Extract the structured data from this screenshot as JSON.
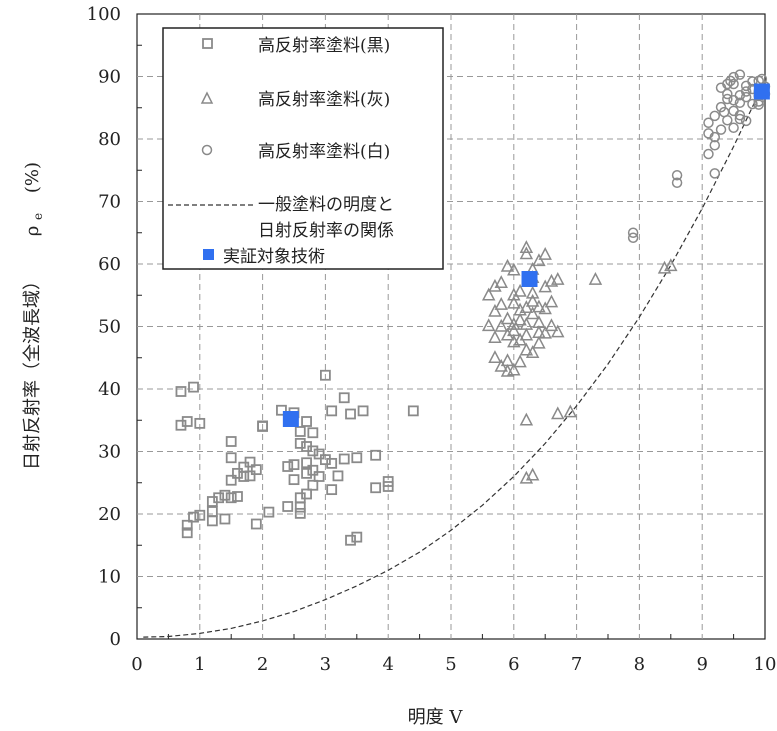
{
  "chart_data": {
    "type": "scatter",
    "xlabel": "明度 V",
    "ylabel": "日射反射率（全波長域）　ρe（%）",
    "ylabel_main": "日射反射率（全波長域）",
    "ylabel_symbol": "ρ",
    "ylabel_subscript": "e",
    "ylabel_unit": "(%)",
    "xlim": [
      0,
      10
    ],
    "ylim": [
      0,
      100
    ],
    "x_ticks": [
      0,
      1,
      2,
      3,
      4,
      5,
      6,
      7,
      8,
      9,
      10
    ],
    "y_ticks": [
      0,
      10,
      20,
      30,
      40,
      50,
      60,
      70,
      80,
      90,
      100
    ],
    "grid": true,
    "legend_position": "top-left",
    "colors": {
      "gray": "#8a8a8a",
      "blue": "#3070f0",
      "curve": "#333333"
    },
    "series": [
      {
        "name": "高反射率塗料(黒)",
        "marker": "square-open",
        "points": [
          [
            0.7,
            34.2
          ],
          [
            0.7,
            39.6
          ],
          [
            0.8,
            17.0
          ],
          [
            0.8,
            18.2
          ],
          [
            0.8,
            34.8
          ],
          [
            0.9,
            40.3
          ],
          [
            0.9,
            19.5
          ],
          [
            1.0,
            34.5
          ],
          [
            1.0,
            19.8
          ],
          [
            1.2,
            18.9
          ],
          [
            1.2,
            20.4
          ],
          [
            1.2,
            22.0
          ],
          [
            1.3,
            22.6
          ],
          [
            1.4,
            23.0
          ],
          [
            1.4,
            19.2
          ],
          [
            1.5,
            25.4
          ],
          [
            1.5,
            29.0
          ],
          [
            1.5,
            31.6
          ],
          [
            1.6,
            22.8
          ],
          [
            1.6,
            26.5
          ],
          [
            1.7,
            26.0
          ],
          [
            1.7,
            27.5
          ],
          [
            1.8,
            28.3
          ],
          [
            1.8,
            26.1
          ],
          [
            1.9,
            27.1
          ],
          [
            1.9,
            18.4
          ],
          [
            2.0,
            34.1
          ],
          [
            2.1,
            20.3
          ],
          [
            2.3,
            36.6
          ],
          [
            2.4,
            21.2
          ],
          [
            2.4,
            27.6
          ],
          [
            2.5,
            27.9
          ],
          [
            2.5,
            25.5
          ],
          [
            2.5,
            36.2
          ],
          [
            2.6,
            20.1
          ],
          [
            2.6,
            22.6
          ],
          [
            2.6,
            31.3
          ],
          [
            2.6,
            33.2
          ],
          [
            2.7,
            26.5
          ],
          [
            2.7,
            23.2
          ],
          [
            2.7,
            28.2
          ],
          [
            2.7,
            30.8
          ],
          [
            2.7,
            34.8
          ],
          [
            2.8,
            24.6
          ],
          [
            2.8,
            27.0
          ],
          [
            2.8,
            30.1
          ],
          [
            2.8,
            33.0
          ],
          [
            2.9,
            26.0
          ],
          [
            2.9,
            29.6
          ],
          [
            3.0,
            28.7
          ],
          [
            3.0,
            42.2
          ],
          [
            3.1,
            36.5
          ],
          [
            3.1,
            28.1
          ],
          [
            3.2,
            26.1
          ],
          [
            3.3,
            38.6
          ],
          [
            3.3,
            28.8
          ],
          [
            3.4,
            36.0
          ],
          [
            3.4,
            15.8
          ],
          [
            3.5,
            16.3
          ],
          [
            3.5,
            29.0
          ],
          [
            3.6,
            36.5
          ],
          [
            3.8,
            24.2
          ],
          [
            3.8,
            29.4
          ],
          [
            4.0,
            24.4
          ],
          [
            4.0,
            25.2
          ],
          [
            4.4,
            36.5
          ],
          [
            1.5,
            22.6
          ],
          [
            2.0,
            34.0
          ],
          [
            3.1,
            23.9
          ],
          [
            2.6,
            21.1
          ]
        ]
      },
      {
        "name": "高反射率塗料(灰)",
        "marker": "triangle-open",
        "points": [
          [
            5.6,
            50.1
          ],
          [
            5.6,
            55.0
          ],
          [
            5.7,
            56.4
          ],
          [
            5.7,
            48.2
          ],
          [
            5.7,
            52.4
          ],
          [
            5.7,
            45.0
          ],
          [
            5.8,
            43.6
          ],
          [
            5.8,
            57.0
          ],
          [
            5.8,
            53.5
          ],
          [
            5.9,
            48.6
          ],
          [
            5.9,
            51.2
          ],
          [
            5.9,
            44.5
          ],
          [
            5.9,
            42.8
          ],
          [
            6.0,
            59.0
          ],
          [
            6.0,
            49.3
          ],
          [
            6.0,
            53.7
          ],
          [
            6.0,
            43.0
          ],
          [
            6.1,
            52.6
          ],
          [
            6.1,
            55.6
          ],
          [
            6.1,
            47.8
          ],
          [
            6.2,
            62.6
          ],
          [
            6.2,
            61.6
          ],
          [
            6.2,
            50.3
          ],
          [
            6.2,
            35.0
          ],
          [
            6.2,
            25.7
          ],
          [
            6.2,
            48.6
          ],
          [
            6.3,
            45.8
          ],
          [
            6.3,
            59.1
          ],
          [
            6.3,
            55.3
          ],
          [
            6.3,
            52.0
          ],
          [
            6.4,
            50.6
          ],
          [
            6.4,
            53.1
          ],
          [
            6.4,
            49.0
          ],
          [
            6.5,
            52.8
          ],
          [
            6.5,
            56.3
          ],
          [
            6.5,
            61.5
          ],
          [
            6.6,
            50.1
          ],
          [
            6.6,
            57.2
          ],
          [
            6.7,
            49.1
          ],
          [
            6.7,
            57.5
          ],
          [
            6.7,
            36.0
          ],
          [
            6.9,
            36.3
          ],
          [
            7.3,
            57.5
          ],
          [
            8.4,
            59.3
          ],
          [
            8.5,
            59.7
          ],
          [
            6.0,
            47.5
          ],
          [
            6.1,
            51.0
          ],
          [
            6.3,
            54.0
          ],
          [
            6.4,
            47.3
          ],
          [
            6.0,
            55.0
          ],
          [
            5.8,
            50.0
          ],
          [
            6.2,
            53.0
          ],
          [
            6.1,
            44.3
          ],
          [
            6.5,
            48.9
          ],
          [
            6.6,
            53.9
          ],
          [
            6.3,
            57.8
          ],
          [
            5.9,
            59.6
          ],
          [
            6.0,
            50.3
          ],
          [
            6.4,
            60.5
          ],
          [
            6.2,
            46.2
          ],
          [
            6.3,
            26.2
          ]
        ]
      },
      {
        "name": "高反射率塗料(白)",
        "marker": "circle-open",
        "points": [
          [
            7.9,
            64.2
          ],
          [
            7.9,
            65.0
          ],
          [
            8.6,
            73.0
          ],
          [
            8.6,
            74.2
          ],
          [
            9.1,
            77.6
          ],
          [
            9.1,
            80.9
          ],
          [
            9.1,
            82.6
          ],
          [
            9.2,
            74.5
          ],
          [
            9.2,
            79.0
          ],
          [
            9.2,
            83.7
          ],
          [
            9.3,
            81.5
          ],
          [
            9.3,
            85.1
          ],
          [
            9.3,
            88.2
          ],
          [
            9.4,
            83.0
          ],
          [
            9.4,
            86.4
          ],
          [
            9.4,
            87.2
          ],
          [
            9.5,
            89.9
          ],
          [
            9.5,
            88.8
          ],
          [
            9.5,
            86.2
          ],
          [
            9.5,
            84.5
          ],
          [
            9.6,
            90.3
          ],
          [
            9.6,
            87.0
          ],
          [
            9.6,
            85.8
          ],
          [
            9.6,
            83.8
          ],
          [
            9.7,
            88.5
          ],
          [
            9.7,
            87.6
          ],
          [
            9.7,
            86.7
          ],
          [
            9.8,
            85.6
          ],
          [
            9.8,
            89.2
          ],
          [
            9.8,
            88.0
          ],
          [
            9.9,
            86.0
          ],
          [
            9.9,
            89.3
          ],
          [
            9.9,
            87.6
          ],
          [
            9.9,
            86.9
          ],
          [
            9.9,
            85.5
          ],
          [
            10.0,
            88.4
          ],
          [
            10.0,
            87.2
          ],
          [
            9.95,
            89.6
          ],
          [
            9.5,
            81.8
          ],
          [
            9.6,
            83.2
          ],
          [
            9.7,
            82.9
          ],
          [
            9.4,
            88.8
          ],
          [
            9.2,
            80.3
          ],
          [
            9.35,
            84.3
          ],
          [
            9.45,
            89.3
          ]
        ]
      },
      {
        "name": "実証対象技術",
        "marker": "square-filled",
        "points": [
          [
            2.45,
            35.2
          ],
          [
            6.25,
            57.6
          ],
          [
            9.95,
            87.6
          ]
        ]
      }
    ],
    "curve": {
      "name": "一般塗料の明度と日射反射率の関係",
      "name_line1": "一般塗料の明度と",
      "name_line2": "日射反射率の関係",
      "style": "dashed",
      "points": [
        [
          0.1,
          0.3
        ],
        [
          0.5,
          0.4
        ],
        [
          1.0,
          0.9
        ],
        [
          1.5,
          1.7
        ],
        [
          2.0,
          2.9
        ],
        [
          2.5,
          4.4
        ],
        [
          3.0,
          6.3
        ],
        [
          3.5,
          8.5
        ],
        [
          4.0,
          11.0
        ],
        [
          4.5,
          13.9
        ],
        [
          5.0,
          17.4
        ],
        [
          5.5,
          21.4
        ],
        [
          6.0,
          26.0
        ],
        [
          6.5,
          31.3
        ],
        [
          7.0,
          37.3
        ],
        [
          7.5,
          44.0
        ],
        [
          8.0,
          51.5
        ],
        [
          8.5,
          59.8
        ],
        [
          9.0,
          68.9
        ],
        [
          9.5,
          78.8
        ],
        [
          9.95,
          88.3
        ]
      ]
    }
  }
}
